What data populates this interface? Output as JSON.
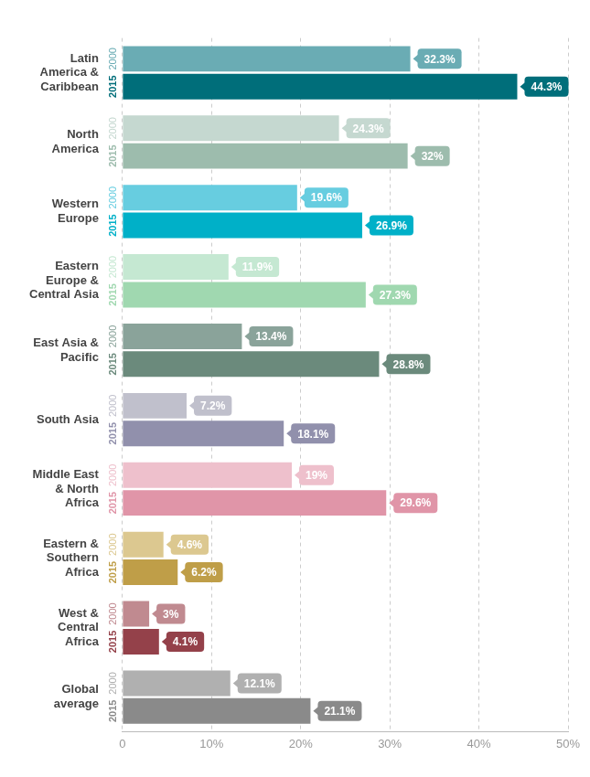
{
  "chart_data": {
    "type": "bar",
    "orientation": "horizontal",
    "categories": [
      "Latin America & Caribbean",
      "North America",
      "Western Europe",
      "Eastern Europe & Central Asia",
      "East Asia & Pacific",
      "South Asia",
      "Middle East & North Africa",
      "Eastern & Southern Africa",
      "West & Central Africa",
      "Global average"
    ],
    "series": [
      {
        "name": "2000",
        "colors": [
          "#6aacb4",
          "#c5d8d0",
          "#67cde0",
          "#c5e8d2",
          "#8aa39a",
          "#c0c0cc",
          "#eec0cc",
          "#dcc890",
          "#c08a90",
          "#b0b0b0"
        ],
        "values": [
          32.3,
          24.3,
          19.6,
          11.9,
          13.4,
          7.2,
          19,
          4.6,
          3,
          12.1
        ],
        "value_labels": [
          "32.3%",
          "24.3%",
          "19.6%",
          "11.9%",
          "13.4%",
          "7.2%",
          "19%",
          "4.6%",
          "3%",
          "12.1%"
        ]
      },
      {
        "name": "2015",
        "colors": [
          "#006e7a",
          "#9dbcad",
          "#00b0c8",
          "#a0d8b0",
          "#6b8a7c",
          "#9190ac",
          "#e095a8",
          "#bf9e48",
          "#94414a",
          "#8a8a8a"
        ],
        "values": [
          44.3,
          32,
          26.9,
          27.3,
          28.8,
          18.1,
          29.6,
          6.2,
          4.1,
          21.1
        ],
        "value_labels": [
          "44.3%",
          "32%",
          "26.9%",
          "27.3%",
          "28.8%",
          "18.1%",
          "29.6%",
          "6.2%",
          "4.1%",
          "21.1%"
        ]
      }
    ],
    "xlim": [
      0,
      50
    ],
    "xticks": [
      0,
      {
        "value": 10,
        "label": "10%"
      },
      {
        "value": 20,
        "label": "20%"
      },
      {
        "value": 30,
        "label": "30%"
      },
      {
        "value": 40,
        "label": "40%"
      },
      {
        "value": 50,
        "label": "50%"
      }
    ],
    "grid": true,
    "data_labels": true
  }
}
